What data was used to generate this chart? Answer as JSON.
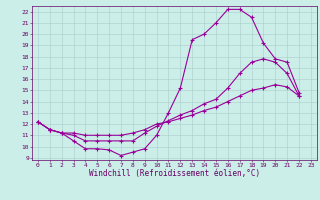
{
  "xlabel": "Windchill (Refroidissement éolien,°C)",
  "background_color": "#cceee8",
  "grid_color": "#aacccc",
  "line_color": "#990099",
  "xlim": [
    -0.5,
    23.5
  ],
  "ylim": [
    8.8,
    22.5
  ],
  "xticks": [
    0,
    1,
    2,
    3,
    4,
    5,
    6,
    7,
    8,
    9,
    10,
    11,
    12,
    13,
    14,
    15,
    16,
    17,
    18,
    19,
    20,
    21,
    22,
    23
  ],
  "yticks": [
    9,
    10,
    11,
    12,
    13,
    14,
    15,
    16,
    17,
    18,
    19,
    20,
    21,
    22
  ],
  "curve1_x": [
    0,
    1,
    2,
    3,
    4,
    5,
    6,
    7,
    8,
    9,
    10,
    11,
    12,
    13,
    14,
    15,
    16,
    17,
    18,
    19,
    20,
    21,
    22
  ],
  "curve1_y": [
    12.2,
    11.5,
    11.2,
    10.5,
    9.8,
    9.8,
    9.7,
    9.2,
    9.5,
    9.8,
    11.0,
    13.0,
    15.2,
    19.5,
    20.0,
    21.0,
    22.2,
    22.2,
    21.5,
    19.2,
    17.8,
    17.5,
    14.8
  ],
  "curve2_x": [
    0,
    1,
    2,
    3,
    4,
    5,
    6,
    7,
    8,
    9,
    10,
    11,
    12,
    13,
    14,
    15,
    16,
    17,
    18,
    19,
    20,
    21,
    22
  ],
  "curve2_y": [
    12.2,
    11.5,
    11.2,
    11.0,
    10.5,
    10.5,
    10.5,
    10.5,
    10.5,
    11.2,
    11.8,
    12.3,
    12.8,
    13.2,
    13.8,
    14.2,
    15.2,
    16.5,
    17.5,
    17.8,
    17.5,
    16.5,
    14.5
  ],
  "curve3_x": [
    0,
    1,
    2,
    3,
    4,
    5,
    6,
    7,
    8,
    9,
    10,
    11,
    12,
    13,
    14,
    15,
    16,
    17,
    18,
    19,
    20,
    21,
    22
  ],
  "curve3_y": [
    12.2,
    11.5,
    11.2,
    11.2,
    11.0,
    11.0,
    11.0,
    11.0,
    11.2,
    11.5,
    12.0,
    12.2,
    12.5,
    12.8,
    13.2,
    13.5,
    14.0,
    14.5,
    15.0,
    15.2,
    15.5,
    15.3,
    14.5
  ],
  "tick_fontsize": 4.5,
  "xlabel_fontsize": 5.5
}
